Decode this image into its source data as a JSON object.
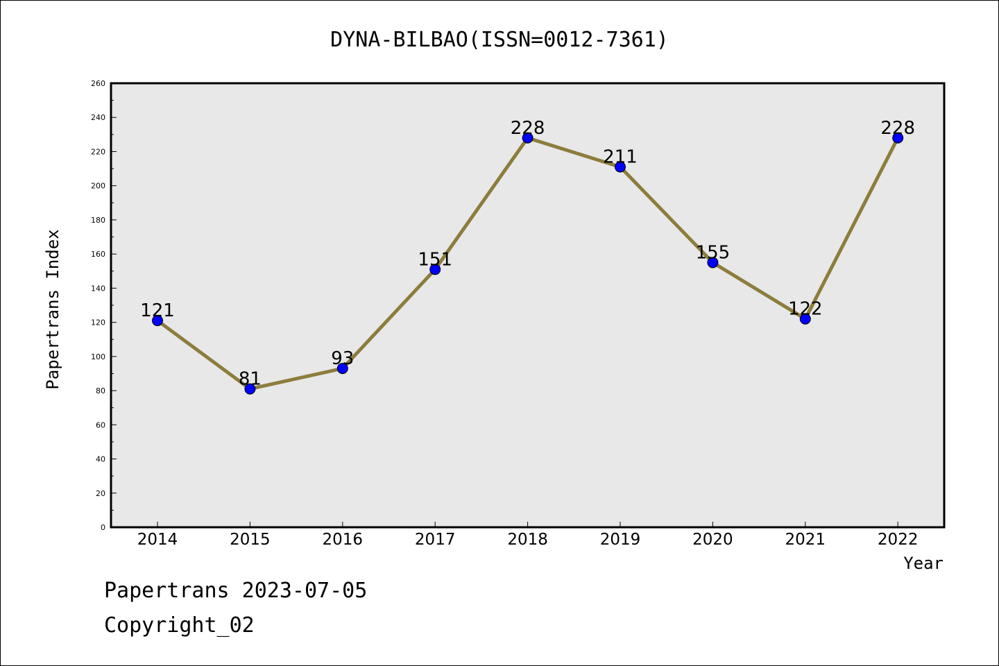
{
  "chart_data": {
    "type": "line",
    "title": "DYNA-BILBAO(ISSN=0012-7361)",
    "xlabel": "Year",
    "ylabel": "Papertrans Index",
    "categories": [
      "2014",
      "2015",
      "2016",
      "2017",
      "2018",
      "2019",
      "2020",
      "2021",
      "2022"
    ],
    "series": [
      {
        "values": [
          121,
          81,
          93,
          151,
          228,
          211,
          155,
          122,
          228
        ]
      }
    ],
    "data_labels": [
      "121",
      "81",
      "93",
      "151",
      "228",
      "211",
      "155",
      "122",
      "228"
    ],
    "ylim": [
      0,
      260
    ],
    "yticks": [
      "0",
      "20",
      "40",
      "60",
      "80",
      "100",
      "120",
      "140",
      "160",
      "180",
      "200",
      "220",
      "240",
      "260"
    ],
    "grid": false,
    "legend": "none",
    "colors": {
      "line": "#8c7d3c",
      "marker": "#0000ff",
      "plot_background": "#e8e8e8"
    }
  },
  "footer": {
    "line1": "Papertrans 2023-07-05",
    "line2": "Copyright_02"
  }
}
